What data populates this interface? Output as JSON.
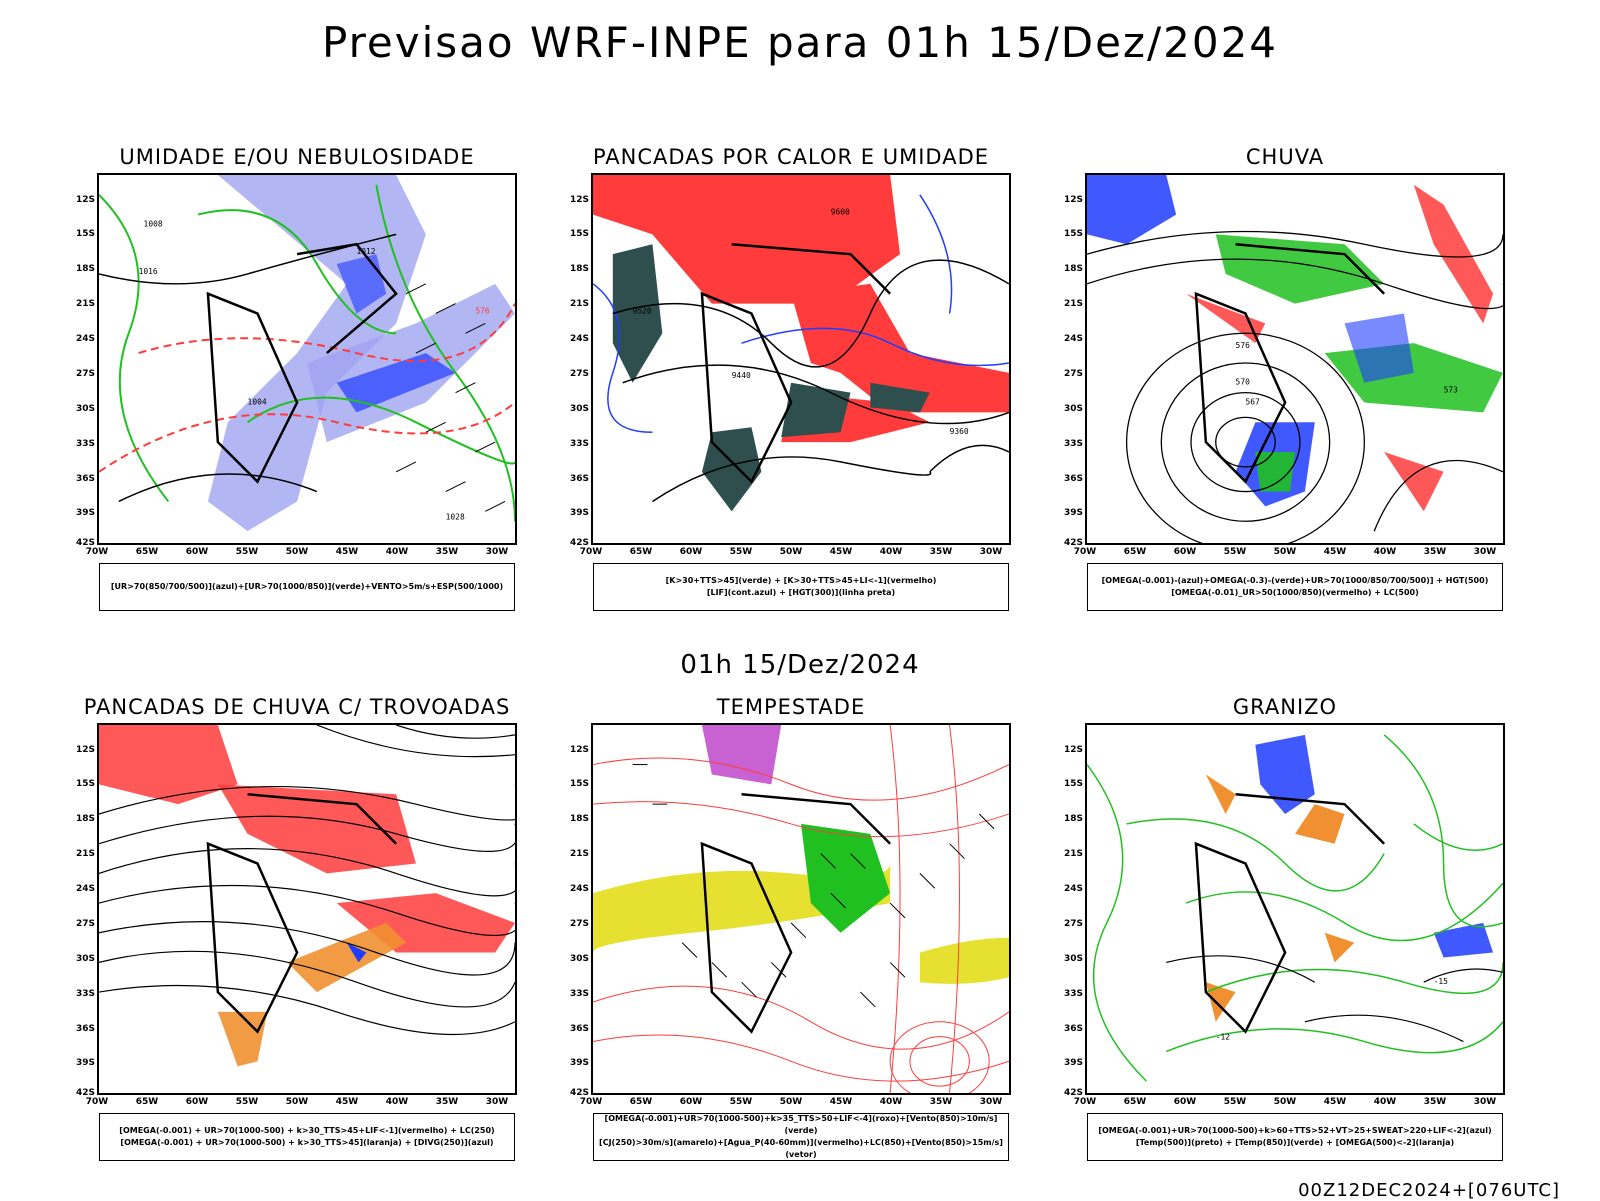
{
  "header": {
    "title": "Previsao WRF-INPE  para 01h 15/Dez/2024",
    "mid_label": "01h 15/Dez/2024",
    "footer": "00Z12DEC2024+[076UTC]"
  },
  "axes": {
    "lat": [
      "12S",
      "15S",
      "18S",
      "21S",
      "24S",
      "27S",
      "30S",
      "33S",
      "36S",
      "39S",
      "42S"
    ],
    "lon": [
      "70W",
      "65W",
      "60W",
      "55W",
      "50W",
      "45W",
      "40W",
      "35W",
      "30W"
    ]
  },
  "colors": {
    "blue_shade": "#9fa4f0",
    "blue": "#1f3cff",
    "green": "#20c020",
    "red": "#ff3b3b",
    "dark_teal": "#2f4f4f",
    "orange": "#f09030",
    "yellow": "#e6e030",
    "purple": "#b020c0"
  },
  "panels": [
    {
      "id": "umidade",
      "title": "UMIDADE E/OU NEBULOSIDADE",
      "legend": [
        "[UR>70(850/700/500)](azul)+[UR>70(1000/850)](verde)+VENTO>5m/s+ESP(500/1000)"
      ],
      "labels": [
        "1008",
        "1012",
        "1016",
        "1004",
        "1028",
        "576"
      ]
    },
    {
      "id": "pancadas_calor",
      "title": "PANCADAS POR CALOR E UMIDADE",
      "legend": [
        "[K>30+TTS>45](verde) + [K>30+TTS>45+LI<-1](vermelho)",
        "[LIF](cont.azul) + [HGT(300)](linha preta)"
      ],
      "labels": [
        "9600",
        "9520",
        "9440",
        "9360"
      ]
    },
    {
      "id": "chuva",
      "title": "CHUVA",
      "legend": [
        "[OMEGA(-0.001)-(azul)+OMEGA(-0.3)-(verde)+UR>70(1000/850/700/500)] + HGT(500)",
        "[OMEGA(-0.01)_UR>50(1000/850)(vermelho) + LC(500)"
      ],
      "labels": [
        "576",
        "573",
        "570",
        "567"
      ]
    },
    {
      "id": "pancadas_trovoadas",
      "title": "PANCADAS DE CHUVA C/ TROVOADAS",
      "legend": [
        "[OMEGA(-0.001) + UR>70(1000-500) + k>30_TTS>45+LIF<-1](vermelho) + LC(250)",
        "[OMEGA(-0.001) + UR>70(1000-500) + k>30_TTS>45](laranja) + [DIVG(250)](azul)"
      ],
      "labels": []
    },
    {
      "id": "tempestade",
      "title": "TEMPESTADE",
      "legend": [
        "[OMEGA(-0.001)+UR>70(1000-500)+k>35_TTS>50+LIF<-4](roxo)+[Vento(850)>10m/s](verde)",
        "[CJ(250)>30m/s](amarelo)+[Agua_P(40-60mm)](vermelho)+LC(850)+[Vento(850)>15m/s](vetor)"
      ],
      "labels": []
    },
    {
      "id": "granizo",
      "title": "GRANIZO",
      "legend": [
        "[OMEGA(-0.001)+UR>70(1000-500)+k>60+TTS>52+VT>25+SWEAT>220+LIF<-2](azul)",
        "[Temp(500)](preto) + [Temp(850)](verde) + [OMEGA(500)<-2](laranja)"
      ],
      "labels": [
        "-12",
        "-15"
      ]
    }
  ]
}
